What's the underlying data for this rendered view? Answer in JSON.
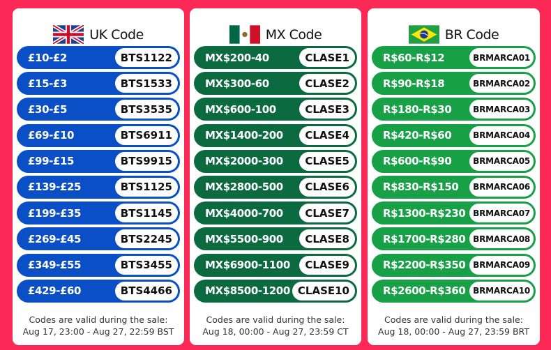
{
  "background_color": "#fc2957",
  "panels": [
    {
      "title": "UK Code",
      "flag": "uk-flag",
      "color": "#0a4fc6",
      "rows": [
        {
          "amount": "£10-£2",
          "code": "BTS1122"
        },
        {
          "amount": "£15-£3",
          "code": "BTS1533"
        },
        {
          "amount": "£30-£5",
          "code": "BTS3535"
        },
        {
          "amount": "£69-£10",
          "code": "BTS6911"
        },
        {
          "amount": "£99-£15",
          "code": "BTS9915"
        },
        {
          "amount": "£139-£25",
          "code": "BTS1125"
        },
        {
          "amount": "£199-£35",
          "code": "BTS1145"
        },
        {
          "amount": "£269-£45",
          "code": "BTS2245"
        },
        {
          "amount": "£349-£55",
          "code": "BTS3455"
        },
        {
          "amount": "£429-£60",
          "code": "BTS4466"
        }
      ],
      "note_line1": "Codes are valid during the sale:",
      "note_line2": "Aug 17, 23:00 - Aug 27, 22:59 BST"
    },
    {
      "title": "MX Code",
      "flag": "mexico-flag",
      "color": "#0b6a3f",
      "rows": [
        {
          "amount": "MX$200-40",
          "code": "CLASE1"
        },
        {
          "amount": "MX$300-60",
          "code": "CLASE2"
        },
        {
          "amount": "MX$600-100",
          "code": "CLASE3"
        },
        {
          "amount": "MX$1400-200",
          "code": "CLASE4"
        },
        {
          "amount": "MX$2000-300",
          "code": "CLASE5"
        },
        {
          "amount": "MX$2800-500",
          "code": "CLASE6"
        },
        {
          "amount": "MX$4000-700",
          "code": "CLASE7"
        },
        {
          "amount": "MX$5500-900",
          "code": "CLASE8"
        },
        {
          "amount": "MX$6900-1100",
          "code": "CLASE9"
        },
        {
          "amount": "MX$8500-1200",
          "code": "CLASE10"
        }
      ],
      "note_line1": "Codes are valid during the sale:",
      "note_line2": "Aug 18, 00:00 - Aug 27, 23:59 CT"
    },
    {
      "title": "BR Code",
      "flag": "brazil-flag",
      "color": "#17a046",
      "rows": [
        {
          "amount": "R$60-R$12",
          "code": "BRMARCA01"
        },
        {
          "amount": "R$90-R$18",
          "code": "BRMARCA02"
        },
        {
          "amount": "R$180-R$30",
          "code": "BRMARCA03"
        },
        {
          "amount": "R$420-R$60",
          "code": "BRMARCA04"
        },
        {
          "amount": "R$600-R$90",
          "code": "BRMARCA05"
        },
        {
          "amount": "R$830-R$150",
          "code": "BRMARCA06"
        },
        {
          "amount": "R$1300-R$230",
          "code": "BRMARCA07"
        },
        {
          "amount": "R$1700-R$280",
          "code": "BRMARCA08"
        },
        {
          "amount": "R$2200-R$350",
          "code": "BRMARCA09"
        },
        {
          "amount": "R$2600-R$360",
          "code": "BRMARCA10"
        }
      ],
      "note_line1": "Codes are valid during the sale:",
      "note_line2": "Aug 18, 00:00 - Aug 27, 23:59 BRT"
    }
  ]
}
